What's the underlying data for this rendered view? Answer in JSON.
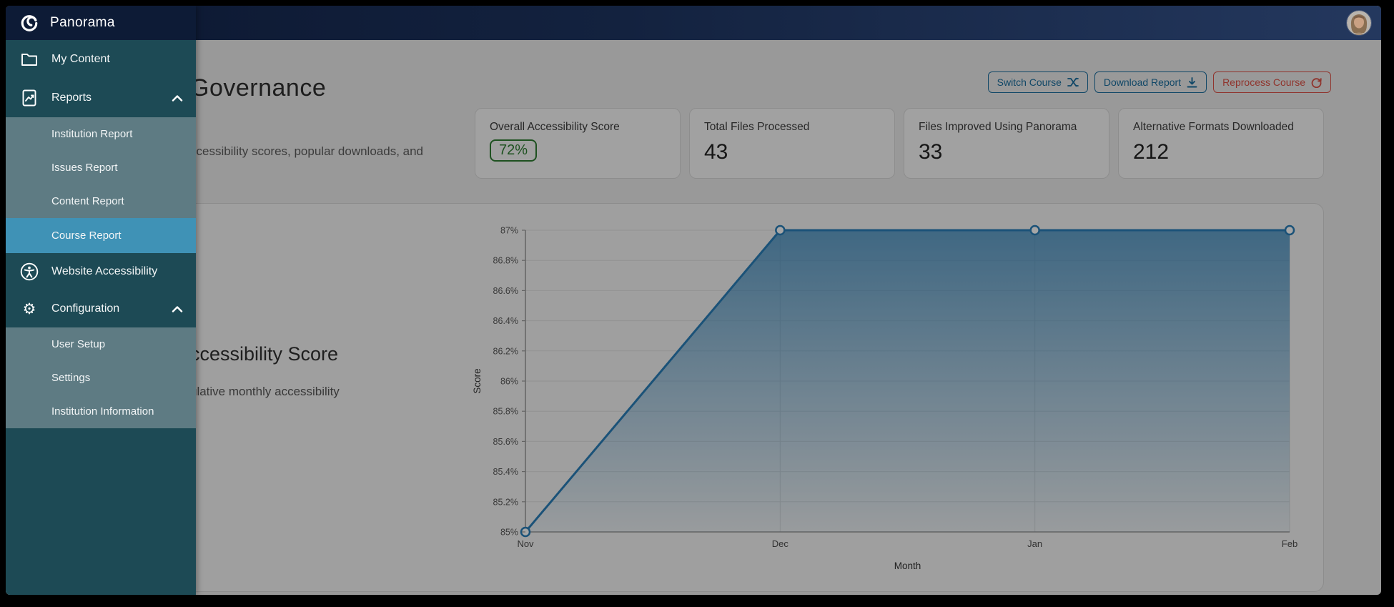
{
  "brand": {
    "name": "Panorama"
  },
  "topbar": {
    "avatar_alt": "User profile"
  },
  "sidebar": {
    "items": [
      {
        "label": "My Content",
        "type": "parent",
        "icon": "folder-icon"
      },
      {
        "label": "Reports",
        "type": "parent",
        "icon": "report-icon",
        "expanded": true
      },
      {
        "label": "Institution Report",
        "type": "sub"
      },
      {
        "label": "Issues Report",
        "type": "sub"
      },
      {
        "label": "Content Report",
        "type": "sub"
      },
      {
        "label": "Course Report",
        "type": "sub",
        "selected": true
      },
      {
        "label": "Website Accessibility",
        "type": "parent",
        "icon": "accessibility-icon"
      },
      {
        "label": "Configuration",
        "type": "parent",
        "icon": "gear-icon",
        "expanded": true
      },
      {
        "label": "User Setup",
        "type": "sub"
      },
      {
        "label": "Settings",
        "type": "sub"
      },
      {
        "label": "Institution Information",
        "type": "sub"
      }
    ]
  },
  "page": {
    "title_visible": "Governance",
    "subtitle_visible": "ccessibility scores, popular downloads, and",
    "actions": [
      {
        "label": "Switch Course",
        "icon": "switch-icon",
        "color": "#1a6e9e"
      },
      {
        "label": "Download Report",
        "icon": "download-icon",
        "color": "#1a6e9e"
      },
      {
        "label": "Reprocess Course",
        "icon": "refresh-icon",
        "color": "#dd5145"
      }
    ]
  },
  "stats": [
    {
      "label": "Overall Accessibility Score",
      "value": "72%",
      "badge": true,
      "badge_color": "#2e7d32"
    },
    {
      "label": "Total Files Processed",
      "value": "43"
    },
    {
      "label": "Files Improved Using Panorama",
      "value": "33"
    },
    {
      "label": "Alternative Formats Downloaded",
      "value": "212"
    }
  ],
  "chart_section": {
    "heading_visible": "ccessibility Score",
    "subheading_visible": "ulative monthly accessibility"
  },
  "chart_data": {
    "type": "area",
    "title": "Monthly Accessibility Score (partially occluded)",
    "x": [
      "Nov",
      "Dec",
      "Jan",
      "Feb"
    ],
    "series": [
      {
        "name": "Score",
        "values": [
          85,
          87,
          87,
          87
        ]
      }
    ],
    "xlabel": "Month",
    "ylabel": "Score",
    "ylim": [
      85,
      87
    ],
    "yticks": [
      {
        "v": 85.0,
        "label": "85%"
      },
      {
        "v": 85.2,
        "label": "85.2%"
      },
      {
        "v": 85.4,
        "label": "85.4%"
      },
      {
        "v": 85.6,
        "label": "85.6%"
      },
      {
        "v": 85.8,
        "label": "85.8%"
      },
      {
        "v": 86.0,
        "label": "86%"
      },
      {
        "v": 86.2,
        "label": "86.2%"
      },
      {
        "v": 86.4,
        "label": "86.4%"
      },
      {
        "v": 86.6,
        "label": "86.6%"
      },
      {
        "v": 86.8,
        "label": "86.8%"
      },
      {
        "v": 87.0,
        "label": "87%"
      }
    ],
    "grid": true,
    "legend": false,
    "line_color": "#2a7fb8",
    "fill_top": "rgba(42,127,184,0.72)",
    "fill_bottom": "rgba(42,127,184,0.05)",
    "marker": {
      "fill": "#ffffff",
      "radius": 6
    }
  },
  "colors": {
    "topbar_navy": "#0d1b36",
    "sidebar_teal": "#1d4a55",
    "sidebar_submenu": "#5e7b83",
    "sidebar_selected": "#3f92b6",
    "button_blue": "#1a6e9e",
    "button_red": "#dd5145",
    "badge_green": "#2e7d32"
  }
}
